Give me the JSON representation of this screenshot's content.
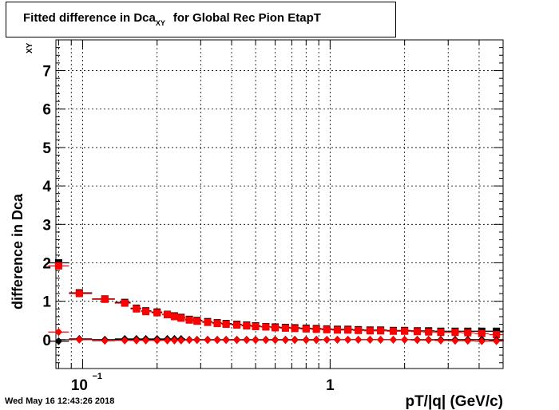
{
  "title_prefix": "Fitted difference in Dca",
  "title_sub": "XY",
  "title_suffix": "for Global Rec Pion EtapT",
  "timestamp": "Wed May 16 12:43:26 2018",
  "chart_data": {
    "type": "scatter",
    "xscale": "log",
    "xlim": [
      0.078,
      5.0
    ],
    "ylim": [
      -0.75,
      7.8
    ],
    "xlabel": "pT/|q| (GeV/c)",
    "ylabel_main": "difference in Dca",
    "ylabel_sub": "XY",
    "grid": true,
    "y_ticks": [
      0,
      1,
      2,
      3,
      4,
      5,
      6,
      7
    ],
    "x_tick_labels": [
      {
        "value": 0.1,
        "base": "10",
        "exp": "−1"
      },
      {
        "value": 1,
        "base": "1",
        "exp": ""
      }
    ],
    "series": [
      {
        "color": "#000000",
        "marker": "square",
        "points": [
          [
            0.08,
            2.0
          ],
          [
            0.097,
            1.22
          ],
          [
            0.123,
            1.06
          ],
          [
            0.148,
            0.97
          ],
          [
            0.165,
            0.82
          ],
          [
            0.18,
            0.75
          ],
          [
            0.2,
            0.72
          ],
          [
            0.22,
            0.66
          ],
          [
            0.235,
            0.62
          ],
          [
            0.25,
            0.58
          ],
          [
            0.27,
            0.53
          ],
          [
            0.29,
            0.5
          ],
          [
            0.32,
            0.47
          ],
          [
            0.35,
            0.44
          ],
          [
            0.38,
            0.42
          ],
          [
            0.42,
            0.4
          ],
          [
            0.46,
            0.38
          ],
          [
            0.5,
            0.36
          ],
          [
            0.55,
            0.34
          ],
          [
            0.6,
            0.33
          ],
          [
            0.66,
            0.32
          ],
          [
            0.72,
            0.31
          ],
          [
            0.8,
            0.3
          ],
          [
            0.88,
            0.29
          ],
          [
            0.97,
            0.28
          ],
          [
            1.07,
            0.27
          ],
          [
            1.18,
            0.27
          ],
          [
            1.3,
            0.26
          ],
          [
            1.45,
            0.25
          ],
          [
            1.6,
            0.25
          ],
          [
            1.8,
            0.24
          ],
          [
            2.0,
            0.24
          ],
          [
            2.25,
            0.23
          ],
          [
            2.5,
            0.23
          ],
          [
            2.8,
            0.22
          ],
          [
            3.2,
            0.22
          ],
          [
            3.6,
            0.22
          ],
          [
            4.1,
            0.22
          ],
          [
            4.7,
            0.22
          ]
        ]
      },
      {
        "color": "#ff0000",
        "marker": "square",
        "points": [
          [
            0.08,
            1.92
          ],
          [
            0.097,
            1.2
          ],
          [
            0.123,
            1.05
          ],
          [
            0.148,
            0.95
          ],
          [
            0.165,
            0.8
          ],
          [
            0.18,
            0.73
          ],
          [
            0.2,
            0.7
          ],
          [
            0.22,
            0.65
          ],
          [
            0.235,
            0.6
          ],
          [
            0.25,
            0.56
          ],
          [
            0.27,
            0.51
          ],
          [
            0.29,
            0.48
          ],
          [
            0.32,
            0.45
          ],
          [
            0.35,
            0.42
          ],
          [
            0.38,
            0.4
          ],
          [
            0.42,
            0.38
          ],
          [
            0.46,
            0.36
          ],
          [
            0.5,
            0.34
          ],
          [
            0.55,
            0.33
          ],
          [
            0.6,
            0.31
          ],
          [
            0.66,
            0.3
          ],
          [
            0.72,
            0.29
          ],
          [
            0.8,
            0.28
          ],
          [
            0.88,
            0.27
          ],
          [
            0.97,
            0.26
          ],
          [
            1.07,
            0.25
          ],
          [
            1.18,
            0.25
          ],
          [
            1.3,
            0.24
          ],
          [
            1.45,
            0.23
          ],
          [
            1.6,
            0.23
          ],
          [
            1.8,
            0.22
          ],
          [
            2.0,
            0.22
          ],
          [
            2.25,
            0.21
          ],
          [
            2.5,
            0.2
          ],
          [
            2.8,
            0.19
          ],
          [
            3.2,
            0.19
          ],
          [
            3.6,
            0.18
          ],
          [
            4.1,
            0.16
          ],
          [
            4.7,
            0.13
          ]
        ]
      },
      {
        "color": "#000000",
        "marker": "diamond",
        "points": [
          [
            0.08,
            -0.04
          ],
          [
            0.097,
            0.02
          ],
          [
            0.123,
            0.0
          ],
          [
            0.148,
            0.02
          ],
          [
            0.165,
            0.02
          ],
          [
            0.18,
            0.02
          ],
          [
            0.2,
            0.02
          ],
          [
            0.22,
            0.02
          ],
          [
            0.235,
            0.02
          ],
          [
            0.25,
            0.02
          ],
          [
            0.27,
            0.0
          ],
          [
            0.29,
            0.0
          ],
          [
            0.32,
            0.0
          ],
          [
            0.35,
            0.0
          ],
          [
            0.38,
            0.0
          ],
          [
            0.42,
            0.0
          ],
          [
            0.46,
            0.0
          ],
          [
            0.5,
            0.0
          ],
          [
            0.55,
            0.0
          ],
          [
            0.6,
            0.0
          ],
          [
            0.66,
            0.0
          ],
          [
            0.72,
            0.0
          ],
          [
            0.8,
            0.0
          ],
          [
            0.88,
            0.0
          ],
          [
            0.97,
            0.0
          ],
          [
            1.07,
            0.0
          ],
          [
            1.18,
            0.0
          ],
          [
            1.3,
            0.0
          ],
          [
            1.45,
            0.0
          ],
          [
            1.6,
            0.0
          ],
          [
            1.8,
            0.0
          ],
          [
            2.0,
            0.0
          ],
          [
            2.25,
            0.0
          ],
          [
            2.5,
            0.0
          ],
          [
            2.8,
            0.0
          ],
          [
            3.2,
            0.0
          ],
          [
            3.6,
            0.0
          ],
          [
            4.1,
            0.0
          ],
          [
            4.7,
            -0.01
          ]
        ]
      },
      {
        "color": "#ff0000",
        "marker": "diamond",
        "points": [
          [
            0.08,
            0.2
          ],
          [
            0.097,
            0.0
          ],
          [
            0.123,
            -0.03
          ],
          [
            0.148,
            -0.02
          ],
          [
            0.165,
            -0.02
          ],
          [
            0.18,
            -0.02
          ],
          [
            0.2,
            -0.02
          ],
          [
            0.22,
            -0.02
          ],
          [
            0.235,
            -0.02
          ],
          [
            0.25,
            -0.02
          ],
          [
            0.27,
            -0.01
          ],
          [
            0.29,
            -0.01
          ],
          [
            0.32,
            -0.01
          ],
          [
            0.35,
            -0.01
          ],
          [
            0.38,
            -0.01
          ],
          [
            0.42,
            -0.01
          ],
          [
            0.46,
            -0.01
          ],
          [
            0.5,
            -0.01
          ],
          [
            0.55,
            -0.01
          ],
          [
            0.6,
            -0.01
          ],
          [
            0.66,
            -0.01
          ],
          [
            0.72,
            -0.01
          ],
          [
            0.8,
            -0.01
          ],
          [
            0.88,
            -0.01
          ],
          [
            0.97,
            0.0
          ],
          [
            1.07,
            0.0
          ],
          [
            1.18,
            0.0
          ],
          [
            1.3,
            0.0
          ],
          [
            1.45,
            0.0
          ],
          [
            1.6,
            0.0
          ],
          [
            1.8,
            0.0
          ],
          [
            2.0,
            0.0
          ],
          [
            2.25,
            -0.01
          ],
          [
            2.5,
            -0.01
          ],
          [
            2.8,
            -0.02
          ],
          [
            3.2,
            -0.03
          ],
          [
            3.6,
            -0.03
          ],
          [
            4.1,
            -0.04
          ],
          [
            4.7,
            -0.04
          ]
        ]
      }
    ]
  }
}
